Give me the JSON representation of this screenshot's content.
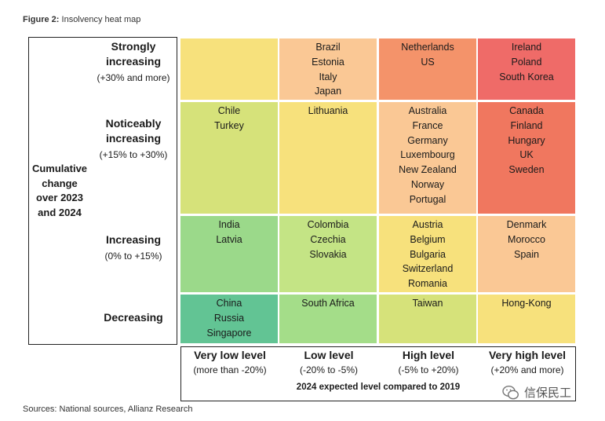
{
  "figure": {
    "title_bold": "Figure 2:",
    "title_text": "Insolvency heat map",
    "source": "Sources: National sources, Allianz Research",
    "watermark": "信保民工"
  },
  "chart_data": {
    "type": "heatmap",
    "y_axis_title": [
      "Cumulative",
      "change",
      "over 2023",
      "and 2024"
    ],
    "x_axis_title": "2024 expected level compared to 2019",
    "rows": [
      {
        "name": [
          "Strongly",
          "increasing"
        ],
        "range": "(+30% and more)"
      },
      {
        "name": [
          "Noticeably",
          "increasing"
        ],
        "range": "(+15% to +30%)"
      },
      {
        "name": [
          "Increasing"
        ],
        "range": "(0% to +15%)"
      },
      {
        "name": [
          "Decreasing"
        ],
        "range": ""
      }
    ],
    "columns": [
      {
        "name": "Very low level",
        "range": "(more than -20%)"
      },
      {
        "name": "Low level",
        "range": "(-20% to -5%)"
      },
      {
        "name": "High level",
        "range": "(-5% to +20%)"
      },
      {
        "name": "Very high level",
        "range": "(+20% and more)"
      }
    ],
    "cells": [
      [
        {
          "color": "#f7e17c",
          "countries": []
        },
        {
          "color": "#fac895",
          "countries": [
            "Brazil",
            "Estonia",
            "Italy",
            "Japan"
          ]
        },
        {
          "color": "#f4936a",
          "countries": [
            "Netherlands",
            "US"
          ]
        },
        {
          "color": "#ef6b68",
          "countries": [
            "Ireland",
            "Poland",
            "South Korea"
          ]
        }
      ],
      [
        {
          "color": "#d6e27a",
          "countries": [
            "Chile",
            "Turkey"
          ]
        },
        {
          "color": "#f7e17c",
          "countries": [
            "Lithuania"
          ]
        },
        {
          "color": "#fac895",
          "countries": [
            "Australia",
            "France",
            "Germany",
            "Luxembourg",
            "New Zealand",
            "Norway",
            "Portugal"
          ]
        },
        {
          "color": "#f0775f",
          "countries": [
            "Canada",
            "Finland",
            "Hungary",
            "UK",
            "Sweden"
          ]
        }
      ],
      [
        {
          "color": "#9bd98a",
          "countries": [
            "India",
            "Latvia"
          ]
        },
        {
          "color": "#c4e485",
          "countries": [
            "Colombia",
            "Czechia",
            "Slovakia"
          ]
        },
        {
          "color": "#f7e17c",
          "countries": [
            "Austria",
            "Belgium",
            "Bulgaria",
            "Switzerland",
            "Romania"
          ]
        },
        {
          "color": "#fac895",
          "countries": [
            "Denmark",
            "Morocco",
            "Spain"
          ]
        }
      ],
      [
        {
          "color": "#62c494",
          "countries": [
            "China",
            "Russia",
            "Singapore"
          ]
        },
        {
          "color": "#a4dd89",
          "countries": [
            "South Africa"
          ]
        },
        {
          "color": "#d6e27a",
          "countries": [
            "Taiwan"
          ]
        },
        {
          "color": "#f7e17c",
          "countries": [
            "Hong-Kong"
          ]
        }
      ]
    ]
  }
}
